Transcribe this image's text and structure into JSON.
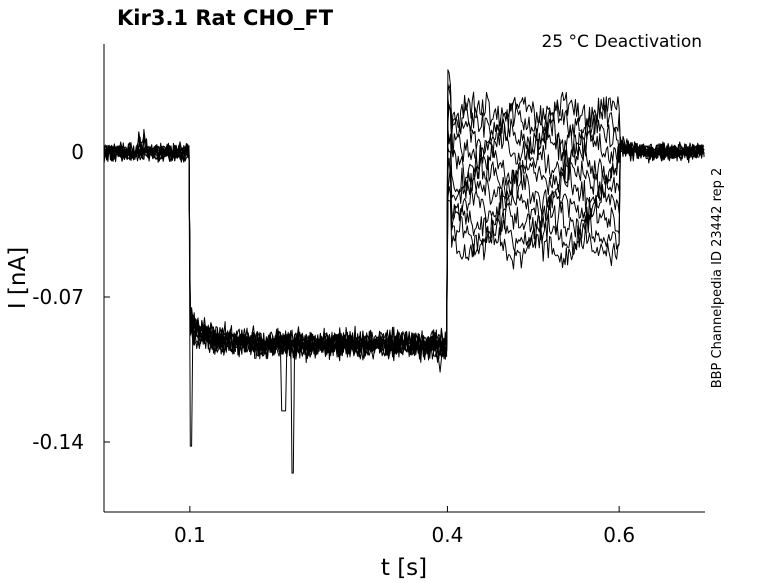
{
  "chart_data": {
    "type": "line",
    "title": "Kir3.1  Rat  CHO_FT",
    "annotation": "25 °C  Deactivation",
    "side_label": "BBP Channelpedia ID 23442 rep 2",
    "xlabel": "t [s]",
    "ylabel": "I [nA]",
    "xlim": [
      0.0,
      0.7
    ],
    "ylim": [
      -0.17,
      0.05
    ],
    "x_ticks": [
      0.1,
      0.4,
      0.6
    ],
    "x_tick_labels": [
      "0.1",
      "0.4",
      "0.6"
    ],
    "y_ticks": [
      0,
      -0.07,
      -0.14
    ],
    "y_tick_labels": [
      "0",
      "-0.07",
      "-0.14"
    ],
    "grid": false,
    "legend": "none",
    "line_color": "#000000",
    "protocol": {
      "holding_current": 0.0,
      "step1_start": 0.1,
      "step1_end": 0.4,
      "step1_current": -0.093,
      "step2_end": 0.6,
      "step2_currents": [
        0.02,
        0.014,
        0.008,
        0.002,
        -0.005,
        -0.012,
        -0.019,
        -0.026,
        -0.033,
        -0.04,
        -0.046
      ],
      "noise_amplitude": 0.004,
      "artifact_min_current": -0.155,
      "artifact_time": 0.22,
      "onset_spike_current": -0.142
    }
  }
}
